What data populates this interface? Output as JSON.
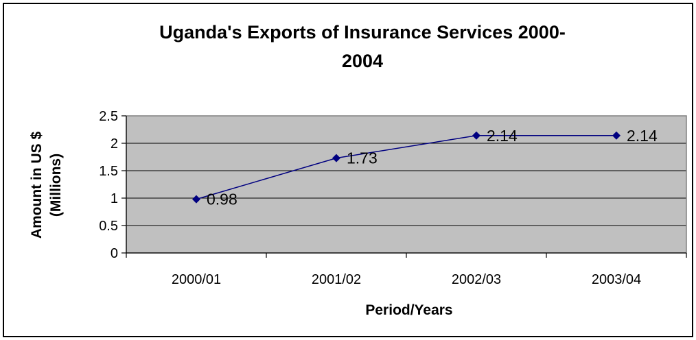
{
  "chart_data": {
    "type": "line",
    "title_lines": [
      "Uganda's Exports of Insurance Services 2000-",
      "2004"
    ],
    "xlabel": "Period/Years",
    "ylabel_lines": [
      "Amount in US $",
      "(Millions)"
    ],
    "categories": [
      "2000/01",
      "2001/02",
      "2002/03",
      "2003/04"
    ],
    "series": [
      {
        "values": [
          0.98,
          1.73,
          2.14,
          2.14
        ],
        "data_labels": [
          "0.98",
          "1.73",
          "2.14",
          "2.14"
        ],
        "color": "#000080"
      }
    ],
    "ylim": [
      0,
      2.5
    ],
    "yticks": [
      0,
      0.5,
      1,
      1.5,
      2,
      2.5
    ],
    "ytick_labels": [
      "0",
      "0.5",
      "1",
      "1.5",
      "2",
      "2.5"
    ],
    "grid": "horizontal",
    "legend": "none",
    "plot_background": "#c0c0c0",
    "frame_color": "#000000"
  }
}
